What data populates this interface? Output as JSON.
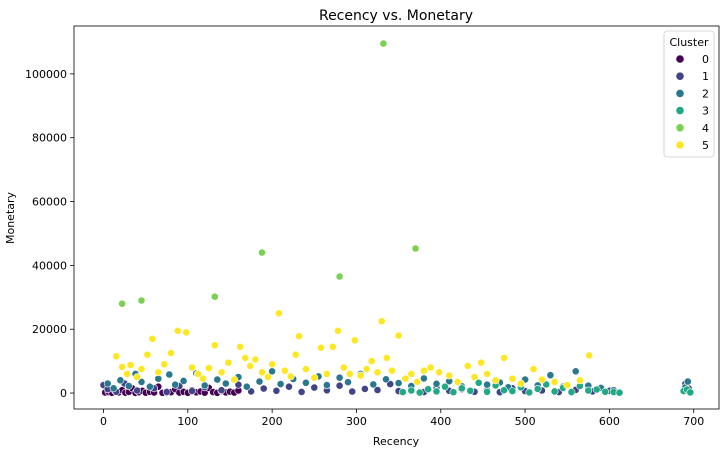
{
  "chart_data": {
    "type": "scatter",
    "title": "Recency vs. Monetary",
    "xlabel": "Recency",
    "ylabel": "Monetary",
    "xlim": [
      -35,
      730
    ],
    "ylim": [
      -5000,
      115000
    ],
    "x_ticks": [
      0,
      100,
      200,
      300,
      400,
      500,
      600,
      700
    ],
    "y_ticks": [
      0,
      20000,
      40000,
      60000,
      80000,
      100000
    ],
    "grid": false,
    "legend": {
      "title": "Cluster",
      "position": "top-right",
      "entries": [
        "0",
        "1",
        "2",
        "3",
        "4",
        "5"
      ]
    },
    "colors": {
      "0": "#440154",
      "1": "#414487",
      "2": "#2a788e",
      "3": "#22a884",
      "4": "#7ad151",
      "5": "#fde725"
    },
    "series": [
      {
        "name": "0",
        "points": [
          [
            2,
            150
          ],
          [
            6,
            300
          ],
          [
            10,
            80
          ],
          [
            14,
            600
          ],
          [
            18,
            200
          ],
          [
            22,
            900
          ],
          [
            26,
            120
          ],
          [
            30,
            350
          ],
          [
            34,
            1500
          ],
          [
            38,
            60
          ],
          [
            42,
            250
          ],
          [
            46,
            700
          ],
          [
            50,
            100
          ],
          [
            55,
            400
          ],
          [
            60,
            180
          ],
          [
            65,
            2000
          ],
          [
            70,
            90
          ],
          [
            75,
            500
          ],
          [
            80,
            260
          ],
          [
            85,
            1200
          ],
          [
            90,
            140
          ],
          [
            95,
            380
          ],
          [
            100,
            70
          ],
          [
            105,
            900
          ],
          [
            110,
            220
          ],
          [
            115,
            450
          ],
          [
            120,
            110
          ],
          [
            125,
            1600
          ],
          [
            130,
            300
          ],
          [
            135,
            80
          ],
          [
            140,
            650
          ],
          [
            145,
            190
          ],
          [
            150,
            420
          ],
          [
            155,
            130
          ],
          [
            160,
            800
          ]
        ]
      },
      {
        "name": "1",
        "points": [
          [
            0,
            2500
          ],
          [
            5,
            1200
          ],
          [
            15,
            400
          ],
          [
            25,
            3000
          ],
          [
            40,
            800
          ],
          [
            60,
            1500
          ],
          [
            75,
            300
          ],
          [
            90,
            2200
          ],
          [
            105,
            600
          ],
          [
            120,
            1800
          ],
          [
            140,
            900
          ],
          [
            160,
            2600
          ],
          [
            175,
            500
          ],
          [
            190,
            1400
          ],
          [
            205,
            700
          ],
          [
            220,
            2000
          ],
          [
            235,
            350
          ],
          [
            250,
            1700
          ],
          [
            265,
            850
          ],
          [
            280,
            2300
          ],
          [
            295,
            450
          ],
          [
            310,
            1300
          ],
          [
            325,
            950
          ],
          [
            340,
            2800
          ],
          [
            350,
            600
          ],
          [
            365,
            1000
          ],
          [
            380,
            300
          ],
          [
            395,
            1600
          ],
          [
            410,
            700
          ],
          [
            425,
            1200
          ],
          [
            440,
            400
          ],
          [
            455,
            900
          ],
          [
            470,
            250
          ],
          [
            485,
            1500
          ],
          [
            500,
            600
          ],
          [
            520,
            800
          ],
          [
            540,
            300
          ],
          [
            560,
            1000
          ],
          [
            580,
            500
          ],
          [
            600,
            700
          ],
          [
            690,
            2800
          ],
          [
            692,
            900
          ],
          [
            694,
            1500
          ]
        ]
      },
      {
        "name": "2",
        "points": [
          [
            5,
            3000
          ],
          [
            12,
            1500
          ],
          [
            20,
            4000
          ],
          [
            30,
            2200
          ],
          [
            38,
            6000
          ],
          [
            45,
            3500
          ],
          [
            55,
            2000
          ],
          [
            65,
            4500
          ],
          [
            78,
            5800
          ],
          [
            85,
            2600
          ],
          [
            95,
            3800
          ],
          [
            110,
            6200
          ],
          [
            120,
            2400
          ],
          [
            135,
            4200
          ],
          [
            145,
            3000
          ],
          [
            160,
            5000
          ],
          [
            170,
            2000
          ],
          [
            185,
            3600
          ],
          [
            200,
            6800
          ],
          [
            210,
            2800
          ],
          [
            225,
            4400
          ],
          [
            240,
            3200
          ],
          [
            255,
            5200
          ],
          [
            265,
            2500
          ],
          [
            280,
            4800
          ],
          [
            290,
            3400
          ],
          [
            305,
            6000
          ],
          [
            320,
            2700
          ],
          [
            335,
            4300
          ],
          [
            350,
            3100
          ],
          [
            365,
            2200
          ],
          [
            380,
            4600
          ],
          [
            395,
            2900
          ],
          [
            410,
            3700
          ],
          [
            425,
            2100
          ],
          [
            440,
            5000
          ],
          [
            455,
            2600
          ],
          [
            470,
            3300
          ],
          [
            480,
            1800
          ],
          [
            500,
            4200
          ],
          [
            515,
            2400
          ],
          [
            530,
            5600
          ],
          [
            545,
            2000
          ],
          [
            560,
            6800
          ],
          [
            575,
            2300
          ],
          [
            590,
            1600
          ],
          [
            605,
            900
          ],
          [
            690,
            1800
          ],
          [
            693,
            3600
          ],
          [
            695,
            200
          ]
        ]
      },
      {
        "name": "3",
        "points": [
          [
            355,
            300
          ],
          [
            365,
            800
          ],
          [
            375,
            150
          ],
          [
            385,
            1200
          ],
          [
            395,
            500
          ],
          [
            405,
            2000
          ],
          [
            415,
            250
          ],
          [
            425,
            1500
          ],
          [
            435,
            700
          ],
          [
            445,
            3200
          ],
          [
            455,
            400
          ],
          [
            465,
            2400
          ],
          [
            475,
            900
          ],
          [
            485,
            600
          ],
          [
            495,
            1800
          ],
          [
            505,
            200
          ],
          [
            515,
            1300
          ],
          [
            525,
            2700
          ],
          [
            535,
            500
          ],
          [
            545,
            1600
          ],
          [
            555,
            300
          ],
          [
            565,
            2200
          ],
          [
            575,
            800
          ],
          [
            585,
            1100
          ],
          [
            595,
            400
          ],
          [
            605,
            300
          ],
          [
            612,
            100
          ],
          [
            688,
            600
          ],
          [
            692,
            1100
          ],
          [
            696,
            200
          ]
        ]
      },
      {
        "name": "4",
        "points": [
          [
            22,
            28000
          ],
          [
            45,
            29000
          ],
          [
            132,
            30200
          ],
          [
            188,
            44000
          ],
          [
            280,
            36500
          ],
          [
            332,
            109500
          ],
          [
            370,
            45300
          ]
        ]
      },
      {
        "name": "5",
        "points": [
          [
            15,
            11500
          ],
          [
            22,
            8200
          ],
          [
            28,
            6000
          ],
          [
            32,
            8800
          ],
          [
            40,
            5000
          ],
          [
            45,
            7500
          ],
          [
            52,
            12000
          ],
          [
            58,
            17000
          ],
          [
            65,
            6500
          ],
          [
            72,
            9000
          ],
          [
            80,
            12500
          ],
          [
            88,
            19500
          ],
          [
            98,
            19000
          ],
          [
            105,
            8000
          ],
          [
            112,
            6000
          ],
          [
            118,
            4500
          ],
          [
            125,
            7800
          ],
          [
            132,
            15000
          ],
          [
            140,
            6500
          ],
          [
            148,
            9500
          ],
          [
            155,
            4200
          ],
          [
            162,
            14500
          ],
          [
            168,
            11000
          ],
          [
            174,
            8500
          ],
          [
            180,
            10500
          ],
          [
            188,
            6500
          ],
          [
            195,
            5000
          ],
          [
            200,
            9000
          ],
          [
            208,
            25000
          ],
          [
            215,
            7000
          ],
          [
            222,
            5200
          ],
          [
            228,
            12000
          ],
          [
            232,
            17800
          ],
          [
            240,
            7500
          ],
          [
            250,
            4800
          ],
          [
            258,
            14200
          ],
          [
            265,
            6000
          ],
          [
            272,
            14500
          ],
          [
            278,
            19500
          ],
          [
            285,
            8000
          ],
          [
            292,
            6000
          ],
          [
            298,
            16500
          ],
          [
            305,
            5500
          ],
          [
            312,
            7500
          ],
          [
            318,
            10000
          ],
          [
            325,
            6500
          ],
          [
            330,
            22500
          ],
          [
            336,
            11000
          ],
          [
            342,
            7000
          ],
          [
            350,
            18000
          ],
          [
            358,
            4500
          ],
          [
            365,
            6000
          ],
          [
            372,
            3500
          ],
          [
            380,
            7000
          ],
          [
            388,
            8000
          ],
          [
            398,
            6500
          ],
          [
            410,
            5500
          ],
          [
            420,
            3500
          ],
          [
            432,
            8500
          ],
          [
            440,
            5000
          ],
          [
            448,
            9500
          ],
          [
            455,
            6000
          ],
          [
            465,
            4000
          ],
          [
            475,
            11000
          ],
          [
            485,
            4500
          ],
          [
            495,
            3000
          ],
          [
            510,
            7500
          ],
          [
            520,
            4200
          ],
          [
            535,
            3500
          ],
          [
            550,
            2500
          ],
          [
            565,
            4000
          ],
          [
            576,
            11800
          ]
        ]
      }
    ]
  }
}
